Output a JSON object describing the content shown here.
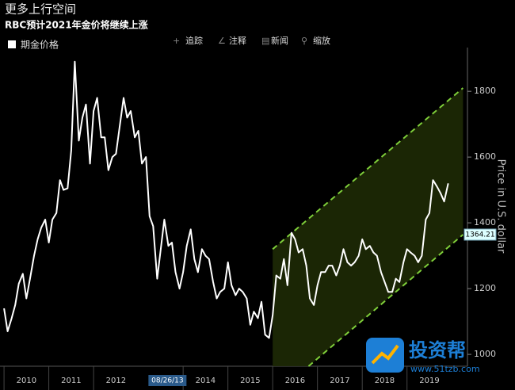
{
  "header": {
    "title": "更多上行空间",
    "subtitle": "RBC预计2021年金价将继续上涨",
    "toolbar": [
      "追踪",
      "注释",
      "新闻",
      "缩放"
    ]
  },
  "watermark": {
    "brand": "投资帮",
    "url": "www.51tzb.com"
  },
  "chart_data": {
    "type": "line",
    "y_label": "Price in U.S. dollar",
    "cursor_label": "08/26/13",
    "series": [
      {
        "name": "期金价格",
        "color": "#ffffff",
        "x": [
          2010.0,
          2010.08,
          2010.17,
          2010.25,
          2010.33,
          2010.42,
          2010.5,
          2010.58,
          2010.67,
          2010.75,
          2010.83,
          2010.92,
          2011.0,
          2011.08,
          2011.17,
          2011.25,
          2011.33,
          2011.42,
          2011.5,
          2011.58,
          2011.67,
          2011.75,
          2011.83,
          2011.92,
          2012.0,
          2012.08,
          2012.17,
          2012.25,
          2012.33,
          2012.42,
          2012.5,
          2012.58,
          2012.67,
          2012.75,
          2012.83,
          2012.92,
          2013.0,
          2013.08,
          2013.17,
          2013.25,
          2013.33,
          2013.42,
          2013.5,
          2013.58,
          2013.67,
          2013.75,
          2013.83,
          2013.92,
          2014.0,
          2014.08,
          2014.17,
          2014.25,
          2014.33,
          2014.42,
          2014.5,
          2014.58,
          2014.67,
          2014.75,
          2014.83,
          2014.92,
          2015.0,
          2015.08,
          2015.17,
          2015.25,
          2015.33,
          2015.42,
          2015.5,
          2015.58,
          2015.67,
          2015.75,
          2015.83,
          2015.92,
          2016.0,
          2016.08,
          2016.17,
          2016.25,
          2016.33,
          2016.42,
          2016.5,
          2016.58,
          2016.67,
          2016.75,
          2016.83,
          2016.92,
          2017.0,
          2017.08,
          2017.17,
          2017.25,
          2017.33,
          2017.42,
          2017.5,
          2017.58,
          2017.67,
          2017.75,
          2017.83,
          2017.92,
          2018.0,
          2018.08,
          2018.17,
          2018.25,
          2018.33,
          2018.42,
          2018.5,
          2018.58,
          2018.67,
          2018.75,
          2018.83,
          2018.92,
          2019.0,
          2019.08,
          2019.17,
          2019.25,
          2019.33,
          2019.42,
          2019.5,
          2019.58,
          2019.67,
          2019.75,
          2019.83,
          2019.92
        ],
        "values": [
          1140,
          1070,
          1110,
          1150,
          1215,
          1245,
          1170,
          1230,
          1300,
          1350,
          1385,
          1410,
          1340,
          1410,
          1430,
          1530,
          1500,
          1505,
          1620,
          1890,
          1650,
          1720,
          1760,
          1580,
          1740,
          1780,
          1660,
          1660,
          1560,
          1600,
          1610,
          1690,
          1780,
          1720,
          1740,
          1660,
          1680,
          1580,
          1600,
          1420,
          1390,
          1230,
          1320,
          1410,
          1330,
          1340,
          1250,
          1200,
          1250,
          1330,
          1380,
          1290,
          1250,
          1320,
          1300,
          1290,
          1220,
          1170,
          1190,
          1200,
          1280,
          1210,
          1180,
          1200,
          1190,
          1170,
          1090,
          1130,
          1110,
          1160,
          1060,
          1050,
          1120,
          1240,
          1230,
          1290,
          1210,
          1370,
          1350,
          1310,
          1320,
          1270,
          1170,
          1150,
          1210,
          1250,
          1250,
          1270,
          1270,
          1240,
          1270,
          1320,
          1280,
          1270,
          1280,
          1300,
          1350,
          1320,
          1330,
          1310,
          1300,
          1250,
          1220,
          1190,
          1190,
          1230,
          1220,
          1280,
          1320,
          1310,
          1300,
          1280,
          1300,
          1410,
          1430,
          1530,
          1510,
          1490,
          1465,
          1520
        ]
      }
    ],
    "channel": {
      "color": "#7fcf3a",
      "fill": "#1e2a06",
      "upper": {
        "x": [
          2016.0,
          2020.25
        ],
        "values": [
          1320,
          1810
        ]
      },
      "lower": {
        "x": [
          2016.8,
          2020.25
        ],
        "values": [
          964,
          1364.21
        ]
      }
    },
    "xlim": [
      2009.91,
      2020.35
    ],
    "xticks": [
      {
        "value": 2010,
        "label": "2010"
      },
      {
        "value": 2011,
        "label": "2011"
      },
      {
        "value": 2012,
        "label": "2012"
      },
      {
        "value": 2014,
        "label": "2014"
      },
      {
        "value": 2015,
        "label": "2015"
      },
      {
        "value": 2016,
        "label": "2016"
      },
      {
        "value": 2017,
        "label": "2017"
      },
      {
        "value": 2018,
        "label": "2018"
      },
      {
        "value": 2019,
        "label": "2019"
      }
    ],
    "cursor_x": 2013.65,
    "ylim": [
      964,
      1933
    ],
    "yticks": [
      1000,
      1200,
      1400,
      1600,
      1800
    ]
  }
}
